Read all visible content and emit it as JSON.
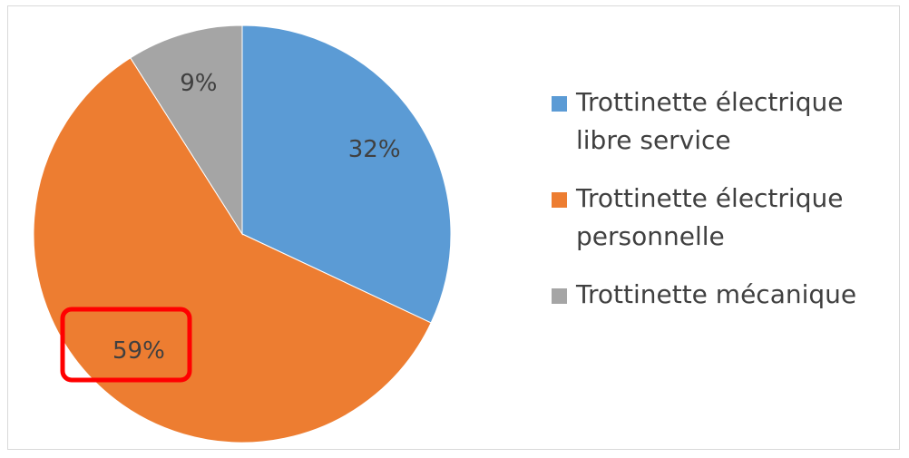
{
  "chart_data": {
    "type": "pie",
    "categories": [
      "Trottinette électrique libre service",
      "Trottinette électrique personnelle",
      "Trottinette mécanique"
    ],
    "values": [
      32,
      59,
      9
    ],
    "value_labels": [
      "32%",
      "59%",
      "9%"
    ],
    "colors": [
      "#5b9bd5",
      "#ed7d31",
      "#a5a5a5"
    ],
    "legend": "right"
  }
}
